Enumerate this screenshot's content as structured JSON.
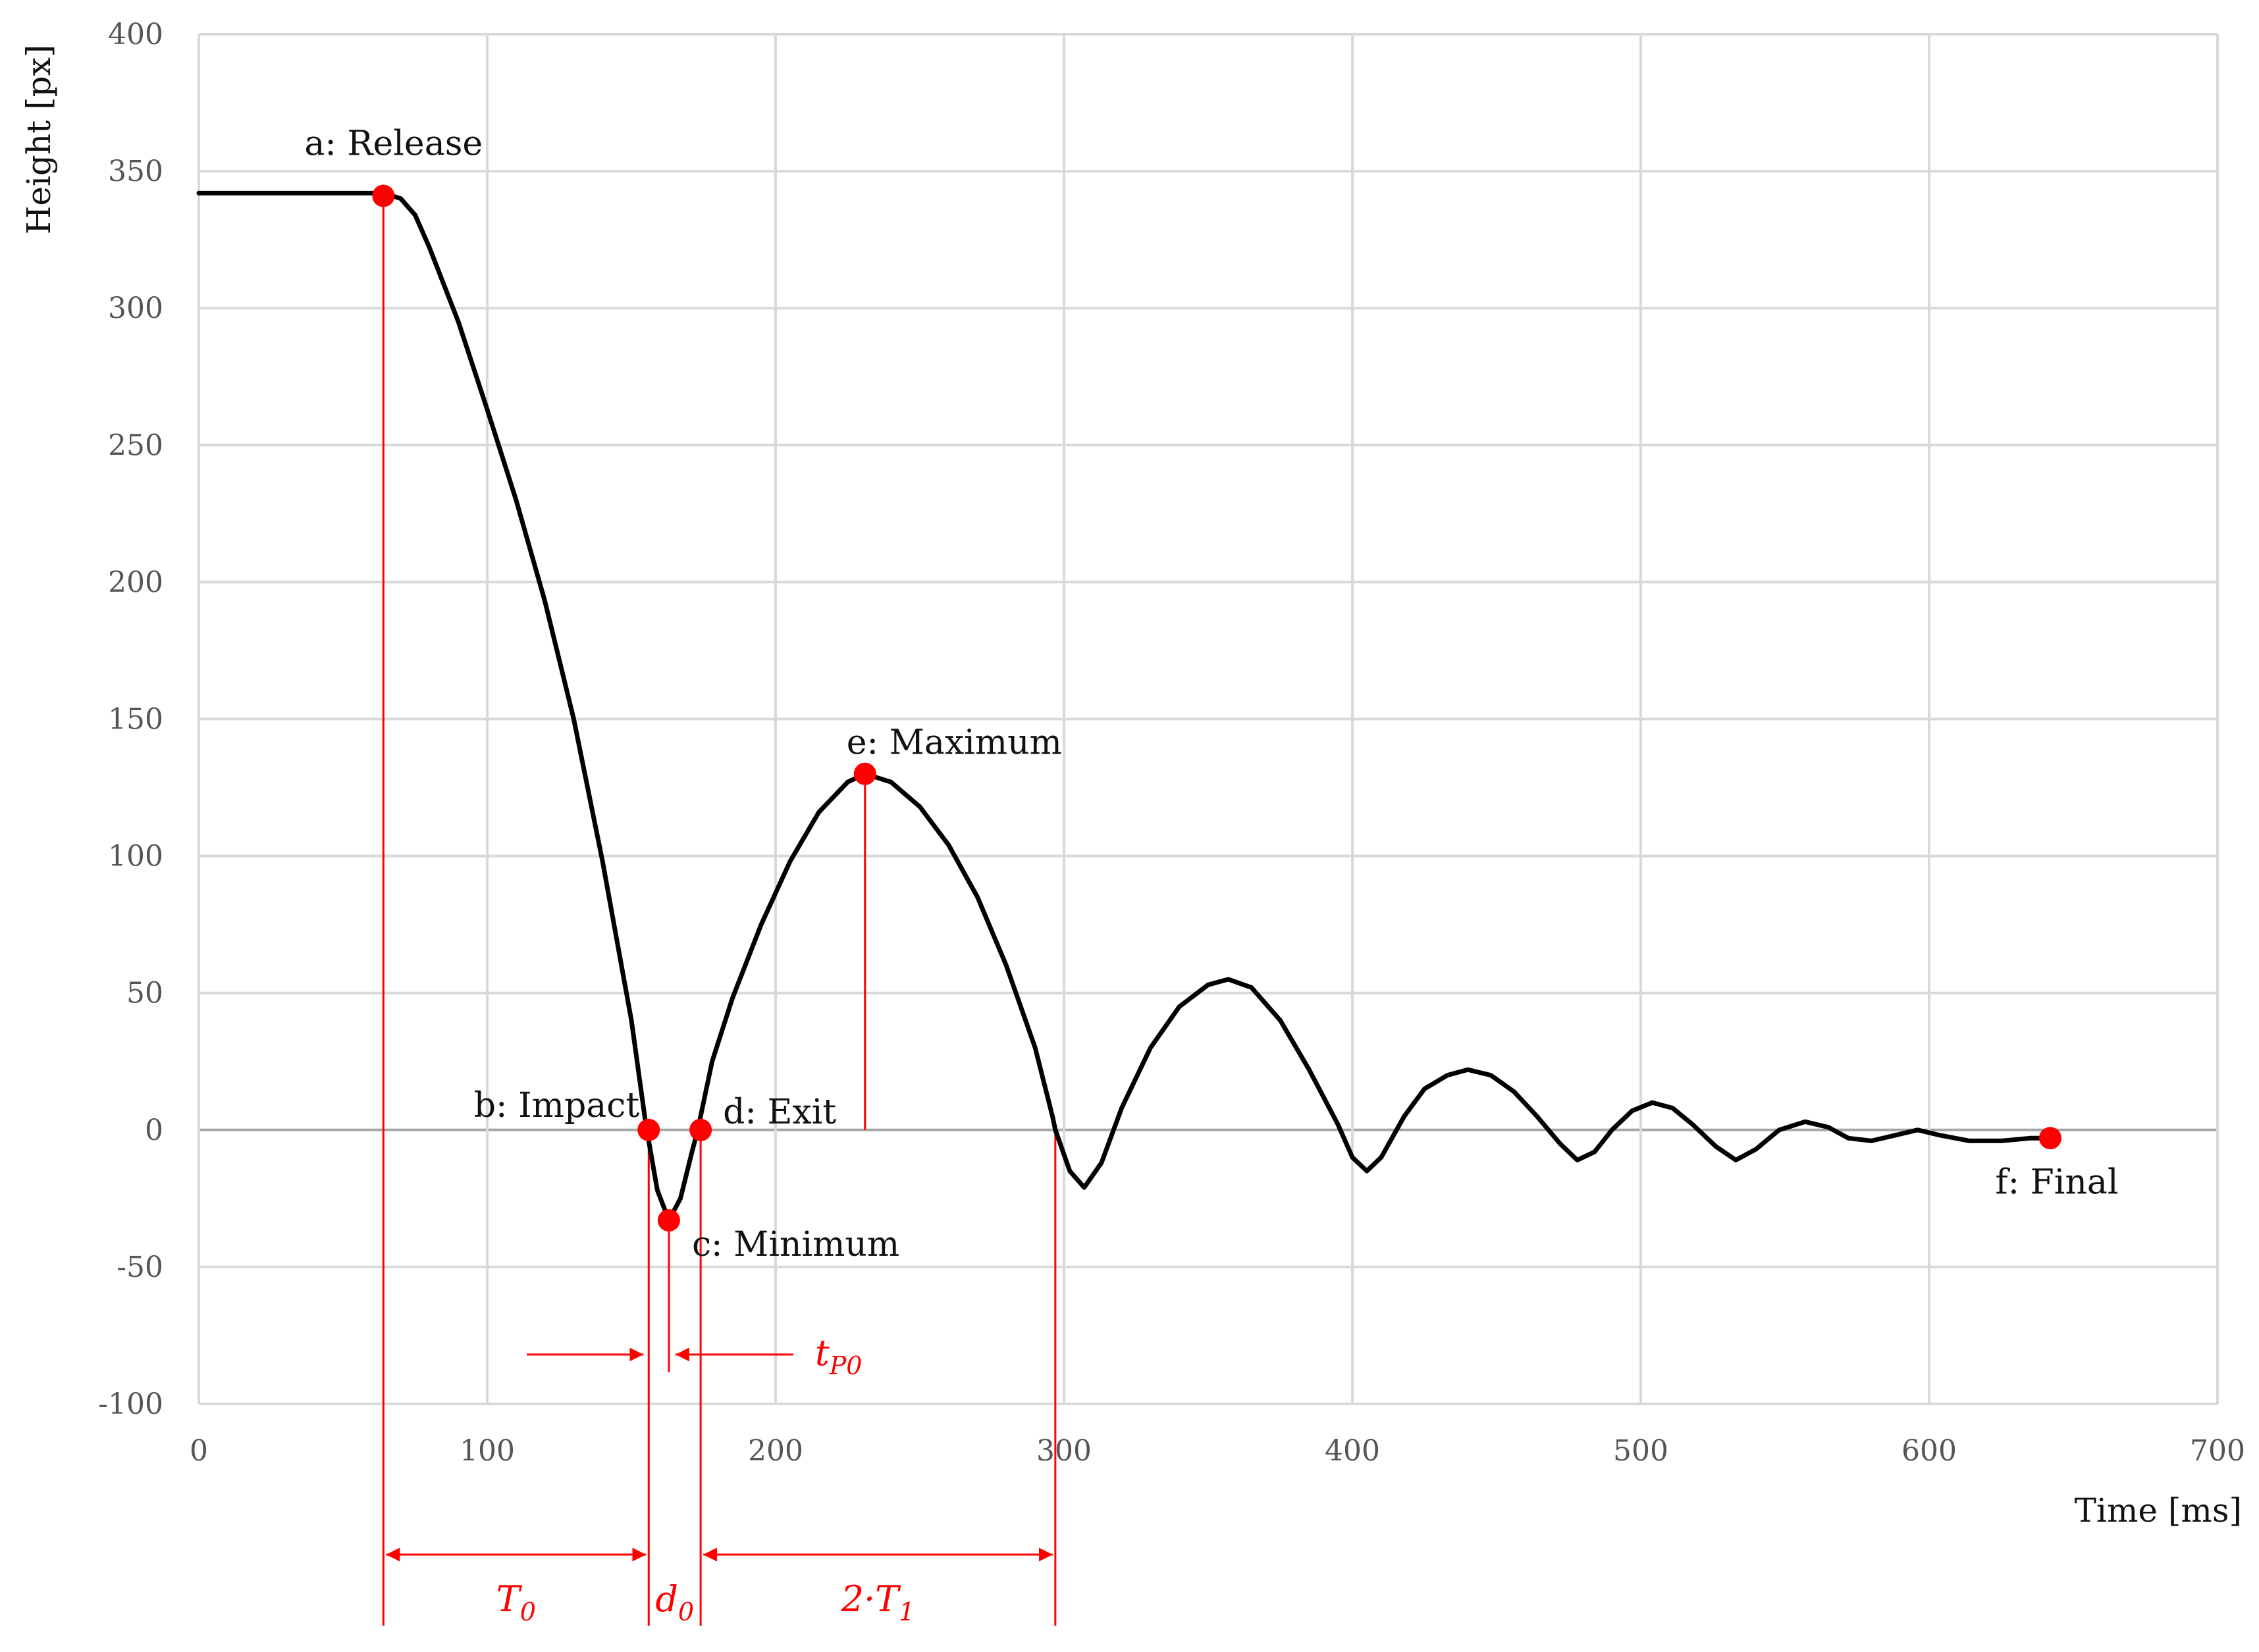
{
  "chart_data": {
    "type": "line",
    "xlabel": "Time [ms]",
    "ylabel": "Height [px]",
    "xlim": [
      0,
      700
    ],
    "ylim": [
      -100,
      400
    ],
    "x_ticks": [
      0,
      100,
      200,
      300,
      400,
      500,
      600,
      700
    ],
    "y_ticks": [
      -100,
      -50,
      0,
      50,
      100,
      150,
      200,
      250,
      300,
      350,
      400
    ],
    "grid": true,
    "colors": {
      "curve": "#000000",
      "markers": "#ff0000",
      "annotations": "#ff0000",
      "grid": "#d9d9d9"
    },
    "series": [
      {
        "points": [
          [
            0,
            342
          ],
          [
            20,
            342
          ],
          [
            40,
            342
          ],
          [
            64,
            342
          ],
          [
            70,
            340
          ],
          [
            75,
            334
          ],
          [
            80,
            322
          ],
          [
            90,
            295
          ],
          [
            100,
            263
          ],
          [
            110,
            230
          ],
          [
            120,
            193
          ],
          [
            130,
            150
          ],
          [
            140,
            98
          ],
          [
            150,
            40
          ],
          [
            155,
            2
          ],
          [
            159,
            -22
          ],
          [
            163,
            -33
          ],
          [
            167,
            -25
          ],
          [
            171,
            -8
          ],
          [
            173,
            0
          ],
          [
            178,
            25
          ],
          [
            185,
            48
          ],
          [
            195,
            75
          ],
          [
            205,
            98
          ],
          [
            215,
            116
          ],
          [
            225,
            127
          ],
          [
            231,
            130
          ],
          [
            240,
            127
          ],
          [
            250,
            118
          ],
          [
            260,
            104
          ],
          [
            270,
            85
          ],
          [
            280,
            60
          ],
          [
            290,
            30
          ],
          [
            296,
            5
          ],
          [
            297,
            0
          ],
          [
            302,
            -15
          ],
          [
            307,
            -21
          ],
          [
            313,
            -12
          ],
          [
            320,
            8
          ],
          [
            330,
            30
          ],
          [
            340,
            45
          ],
          [
            350,
            53
          ],
          [
            357,
            55
          ],
          [
            365,
            52
          ],
          [
            375,
            40
          ],
          [
            385,
            22
          ],
          [
            395,
            2
          ],
          [
            400,
            -10
          ],
          [
            405,
            -15
          ],
          [
            410,
            -10
          ],
          [
            418,
            5
          ],
          [
            425,
            15
          ],
          [
            433,
            20
          ],
          [
            440,
            22
          ],
          [
            448,
            20
          ],
          [
            456,
            14
          ],
          [
            464,
            5
          ],
          [
            472,
            -5
          ],
          [
            478,
            -11
          ],
          [
            484,
            -8
          ],
          [
            490,
            0
          ],
          [
            497,
            7
          ],
          [
            504,
            10
          ],
          [
            511,
            8
          ],
          [
            518,
            2
          ],
          [
            526,
            -6
          ],
          [
            533,
            -11
          ],
          [
            540,
            -7
          ],
          [
            548,
            0
          ],
          [
            557,
            3
          ],
          [
            565,
            1
          ],
          [
            572,
            -3
          ],
          [
            580,
            -4
          ],
          [
            588,
            -2
          ],
          [
            596,
            0
          ],
          [
            604,
            -2
          ],
          [
            614,
            -4
          ],
          [
            625,
            -4
          ],
          [
            635,
            -3
          ],
          [
            642,
            -3
          ]
        ]
      }
    ],
    "points": [
      {
        "label": "a: Release",
        "x": 64,
        "y": 341
      },
      {
        "label": "b: Impact",
        "x": 156,
        "y": 0
      },
      {
        "label": "c: Minimum",
        "x": 163,
        "y": -33
      },
      {
        "label": "d: Exit",
        "x": 174,
        "y": 0
      },
      {
        "label": "e: Maximum",
        "x": 231,
        "y": 130
      },
      {
        "label": "f: Final",
        "x": 642,
        "y": -3
      }
    ],
    "annotations": {
      "tp0": {
        "label": "t",
        "sub": "P0"
      },
      "dims": [
        {
          "label": "T",
          "sub": "0",
          "from": 64,
          "to": 156
        },
        {
          "label": "d",
          "sub": "0",
          "from": 156,
          "to": 174
        },
        {
          "label": "2·T",
          "sub": "1",
          "from": 174,
          "to": 297
        }
      ]
    }
  }
}
